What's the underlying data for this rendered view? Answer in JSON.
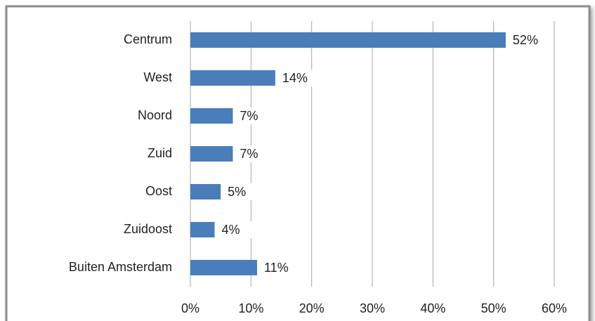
{
  "chart_data": {
    "type": "bar",
    "orientation": "horizontal",
    "categories": [
      "Centrum",
      "West",
      "Noord",
      "Zuid",
      "Oost",
      "Zuidoost",
      "Buiten Amsterdam"
    ],
    "values": [
      52,
      14,
      7,
      7,
      5,
      4,
      11
    ],
    "value_labels": [
      "52%",
      "14%",
      "7%",
      "7%",
      "5%",
      "4%",
      "11%"
    ],
    "color": "#4a7ebb",
    "xlim": [
      0,
      60
    ],
    "xticks": [
      {
        "value": 0,
        "label": "0%"
      },
      {
        "value": 10,
        "label": "10%"
      },
      {
        "value": 20,
        "label": "20%"
      },
      {
        "value": 30,
        "label": "30%"
      },
      {
        "value": 40,
        "label": "40%"
      },
      {
        "value": 50,
        "label": "50%"
      },
      {
        "value": 60,
        "label": "60%"
      }
    ],
    "grid": true
  }
}
